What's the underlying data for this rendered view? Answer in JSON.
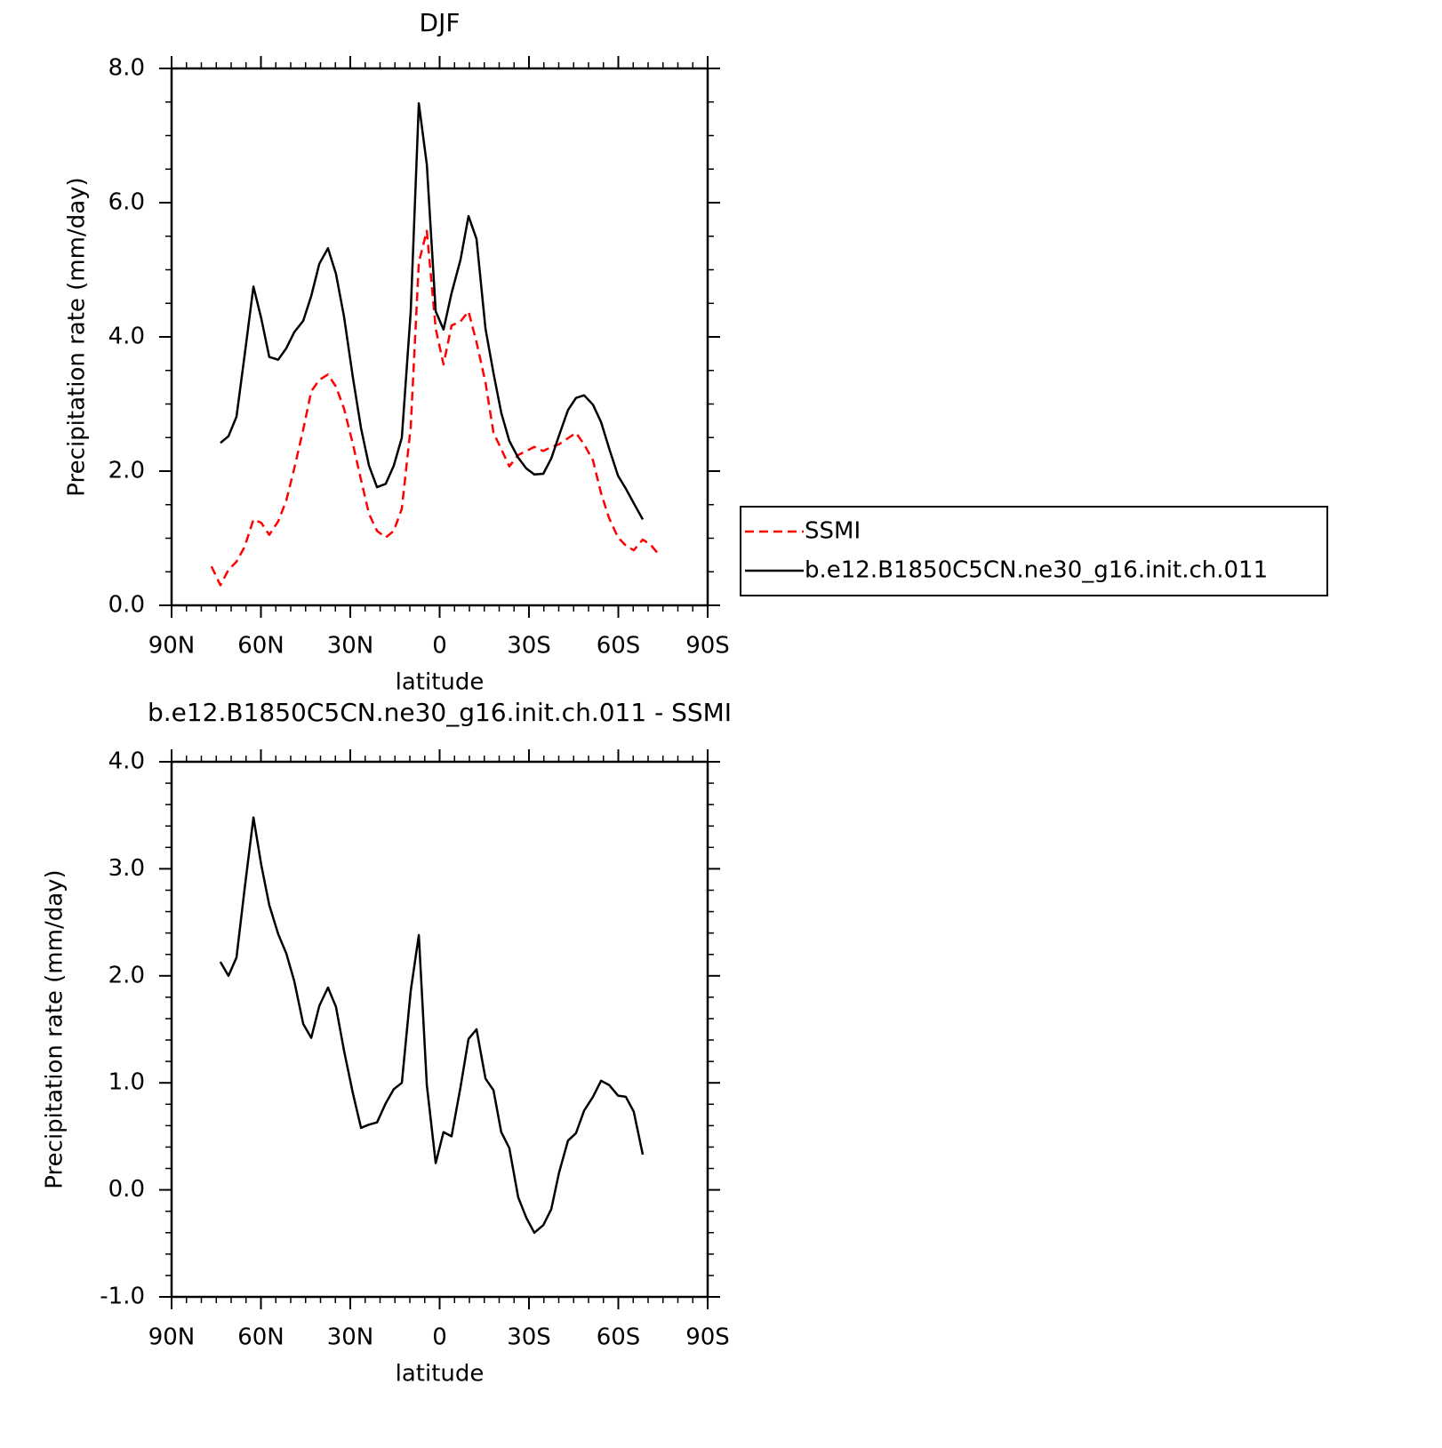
{
  "chart_data": [
    {
      "type": "line",
      "title": "DJF",
      "xlabel": "latitude",
      "ylabel": "Precipitation rate (mm/day)",
      "xlim": [
        90,
        -90
      ],
      "xticks": [
        {
          "value": 90,
          "label": "90N"
        },
        {
          "value": 60,
          "label": "60N"
        },
        {
          "value": 30,
          "label": "30N"
        },
        0,
        {
          "value": -30,
          "label": "30S"
        },
        {
          "value": -60,
          "label": "60S"
        },
        {
          "value": -90,
          "label": "90S"
        }
      ],
      "ylim": [
        0,
        8
      ],
      "yticks": [
        {
          "value": 0,
          "label": "0.0"
        },
        {
          "value": 2,
          "label": "2.0"
        },
        {
          "value": 4,
          "label": "4.0"
        },
        {
          "value": 6,
          "label": "6.0"
        },
        {
          "value": 8,
          "label": "8.0"
        }
      ],
      "legend": "right",
      "series": [
        {
          "name": "SSMI",
          "color": "#ff0000",
          "line_style": "dashed",
          "x": [
            76.6,
            73.6,
            70.9,
            68.2,
            65.5,
            62.5,
            59.9,
            57.2,
            54.2,
            51.5,
            48.8,
            45.8,
            43.1,
            40.4,
            37.5,
            34.8,
            32.1,
            29.1,
            26.4,
            23.7,
            21.0,
            18.1,
            15.4,
            12.7,
            9.7,
            7.0,
            4.3,
            1.3,
            -1.3,
            -4.0,
            -7.0,
            -9.7,
            -12.4,
            -15.4,
            -18.1,
            -20.7,
            -23.4,
            -26.4,
            -29.1,
            -31.8,
            -34.8,
            -37.5,
            -40.1,
            -43.1,
            -45.8,
            -48.5,
            -51.5,
            -54.2,
            -56.9,
            -59.9,
            -62.5,
            -65.2,
            -68.2,
            -70.9,
            -73.9
          ],
          "values": [
            0.58,
            0.3,
            0.53,
            0.65,
            0.87,
            1.28,
            1.23,
            1.05,
            1.25,
            1.56,
            2.04,
            2.62,
            3.19,
            3.36,
            3.44,
            3.26,
            2.93,
            2.4,
            1.87,
            1.36,
            1.11,
            1.01,
            1.11,
            1.44,
            2.66,
            5.11,
            5.58,
            4.12,
            3.59,
            4.17,
            4.23,
            4.38,
            3.92,
            3.32,
            2.57,
            2.33,
            2.07,
            2.24,
            2.3,
            2.36,
            2.3,
            2.36,
            2.4,
            2.49,
            2.57,
            2.4,
            2.16,
            1.67,
            1.3,
            1.01,
            0.89,
            0.82,
            0.98,
            0.9,
            0.74
          ]
        },
        {
          "name": "b.e12.B1850C5CN.ne30_g16.init.ch.011",
          "color": "#000000",
          "line_style": "solid",
          "x": [
            73.6,
            70.9,
            68.2,
            65.5,
            62.5,
            59.9,
            57.2,
            54.2,
            51.5,
            48.8,
            45.8,
            43.1,
            40.4,
            37.5,
            34.8,
            32.1,
            29.1,
            26.4,
            23.7,
            21.0,
            18.1,
            15.4,
            12.7,
            9.7,
            7.0,
            4.3,
            1.3,
            -1.3,
            -4.0,
            -7.0,
            -9.7,
            -12.4,
            -15.4,
            -18.1,
            -20.7,
            -23.4,
            -26.4,
            -29.1,
            -31.8,
            -34.8,
            -37.5,
            -40.1,
            -43.1,
            -45.8,
            -48.5,
            -51.5,
            -54.2,
            -56.9,
            -59.9,
            -62.5,
            -65.2,
            -68.2
          ],
          "values": [
            2.42,
            2.52,
            2.81,
            3.72,
            4.75,
            4.28,
            3.7,
            3.66,
            3.83,
            4.07,
            4.24,
            4.61,
            5.09,
            5.32,
            4.94,
            4.3,
            3.39,
            2.64,
            2.08,
            1.76,
            1.81,
            2.08,
            2.5,
            4.38,
            7.48,
            6.57,
            4.38,
            4.11,
            4.65,
            5.15,
            5.8,
            5.46,
            4.12,
            3.46,
            2.87,
            2.45,
            2.2,
            2.04,
            1.95,
            1.96,
            2.19,
            2.53,
            2.91,
            3.09,
            3.13,
            2.99,
            2.73,
            2.34,
            1.93,
            1.74,
            1.52,
            1.28
          ]
        }
      ]
    },
    {
      "type": "line",
      "title": "b.e12.B1850C5CN.ne30_g16.init.ch.011 - SSMI",
      "xlabel": "latitude",
      "ylabel": "Precipitation rate (mm/day)",
      "xlim": [
        90,
        -90
      ],
      "xticks": [
        {
          "value": 90,
          "label": "90N"
        },
        {
          "value": 60,
          "label": "60N"
        },
        {
          "value": 30,
          "label": "30N"
        },
        0,
        {
          "value": -30,
          "label": "30S"
        },
        {
          "value": -60,
          "label": "60S"
        },
        {
          "value": -90,
          "label": "90S"
        }
      ],
      "ylim": [
        -1,
        4
      ],
      "yticks": [
        {
          "value": -1,
          "label": "-1.0"
        },
        {
          "value": 0,
          "label": "0.0"
        },
        {
          "value": 1,
          "label": "1.0"
        },
        {
          "value": 2,
          "label": "2.0"
        },
        {
          "value": 3,
          "label": "3.0"
        },
        {
          "value": 4,
          "label": "4.0"
        }
      ],
      "series": [
        {
          "color": "#000000",
          "line_style": "solid",
          "x": [
            73.6,
            70.9,
            68.2,
            65.5,
            62.5,
            59.9,
            57.2,
            54.2,
            51.5,
            48.8,
            45.8,
            43.1,
            40.4,
            37.5,
            34.8,
            32.1,
            29.1,
            26.4,
            23.7,
            21.0,
            18.1,
            15.4,
            12.7,
            9.7,
            7.0,
            4.3,
            1.3,
            -1.3,
            -4.0,
            -7.0,
            -9.7,
            -12.4,
            -15.4,
            -18.1,
            -20.7,
            -23.4,
            -26.4,
            -29.1,
            -31.8,
            -34.8,
            -37.5,
            -40.1,
            -43.1,
            -45.8,
            -48.5,
            -51.5,
            -54.2,
            -56.9,
            -59.9,
            -62.5,
            -65.2,
            -68.2
          ],
          "values": [
            2.13,
            2.0,
            2.17,
            2.81,
            3.48,
            3.04,
            2.66,
            2.39,
            2.21,
            1.95,
            1.55,
            1.42,
            1.72,
            1.89,
            1.71,
            1.3,
            0.9,
            0.58,
            0.61,
            0.63,
            0.81,
            0.94,
            1.0,
            1.86,
            2.38,
            0.98,
            0.25,
            0.54,
            0.5,
            0.96,
            1.41,
            1.5,
            1.04,
            0.93,
            0.54,
            0.39,
            -0.07,
            -0.26,
            -0.4,
            -0.33,
            -0.18,
            0.16,
            0.46,
            0.53,
            0.74,
            0.87,
            1.02,
            0.98,
            0.88,
            0.87,
            0.73,
            0.33
          ]
        }
      ]
    }
  ]
}
